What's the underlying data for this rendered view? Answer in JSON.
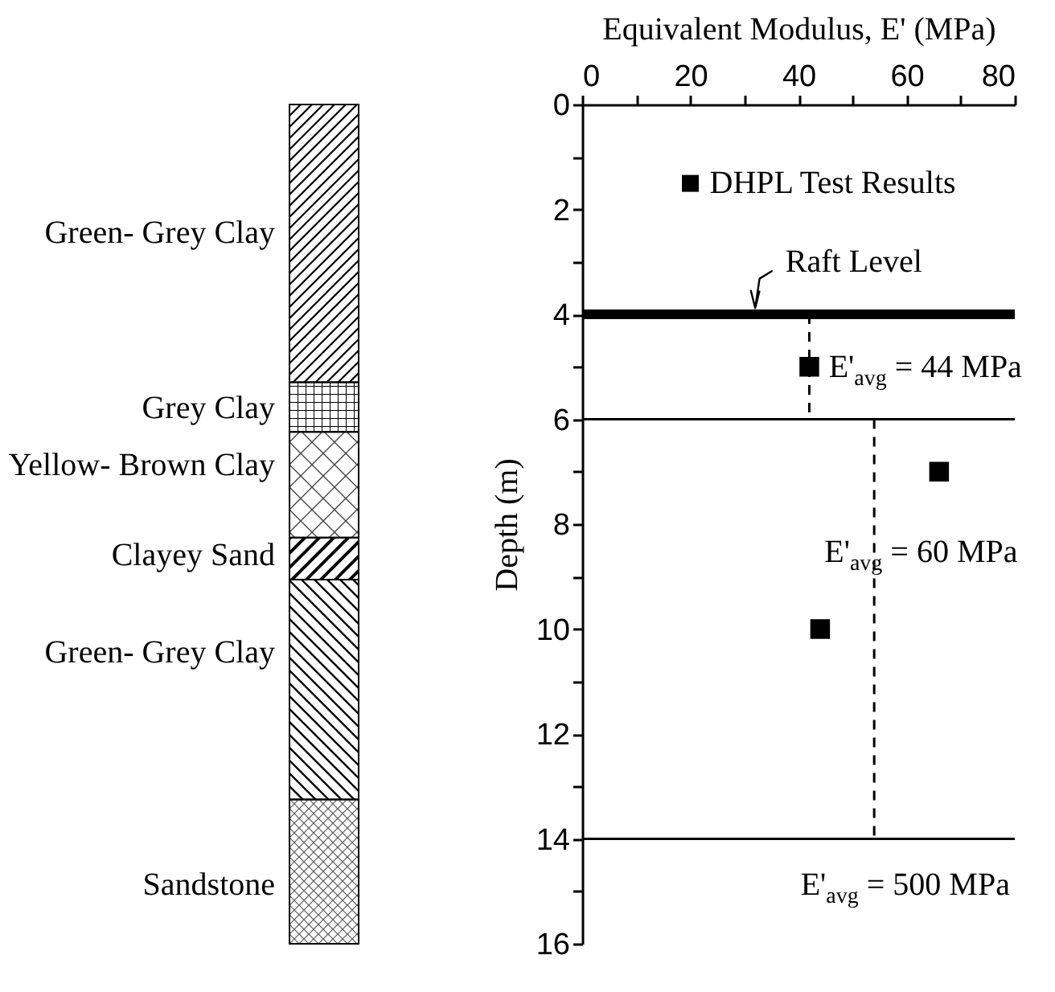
{
  "chart_data": {
    "type": "scatter",
    "xlabel": "Equivalent Modulus, E' (MPa)",
    "ylabel": "Depth (m)",
    "xlim": [
      0,
      80
    ],
    "xticks": [
      0,
      {
        "value": 10,
        "label": null
      },
      20,
      {
        "value": 30,
        "label": null
      },
      40,
      {
        "value": 50,
        "label": null
      },
      60,
      {
        "value": 70,
        "label": null
      },
      80
    ],
    "ylim": [
      16,
      0
    ],
    "yticks": [
      0,
      {
        "value": 1,
        "label": null
      },
      2,
      {
        "value": 3,
        "label": null
      },
      4,
      {
        "value": 5,
        "label": null
      },
      6,
      {
        "value": 7,
        "label": null
      },
      8,
      {
        "value": 9,
        "label": null
      },
      10,
      {
        "value": 11,
        "label": null
      },
      12,
      {
        "value": 13,
        "label": null
      },
      14,
      {
        "value": 15,
        "label": null
      },
      16
    ],
    "marker": "square",
    "legend": "top right",
    "series": [
      {
        "name": "DHPL Test Results",
        "color": "#000000",
        "x": [
          42,
          66,
          44
        ],
        "values": [
          5,
          7,
          10
        ]
      },
      {
        "type": "line",
        "color": "#000000",
        "line_style": "dashed",
        "marker": "none",
        "x": [
          42,
          42
        ],
        "values": [
          4,
          6
        ]
      },
      {
        "type": "line",
        "color": "#000000",
        "line_style": "dashed",
        "marker": "none",
        "x": [
          54,
          54
        ],
        "values": [
          6,
          14
        ]
      }
    ],
    "ref_lines": [
      {
        "axis": "y",
        "value": 4,
        "label": "Raft Level"
      },
      {
        "axis": "y",
        "value": 6
      },
      {
        "axis": "y",
        "value": 14
      }
    ],
    "annotations": [
      "Green- Grey Clay",
      "Grey Clay",
      "Yellow- Brown Clay",
      "Clayey Sand",
      "Green- Grey Clay",
      "Sandstone",
      "E'$_{avg}$ = 44 MPa",
      "E'$_{avg}$ = 60 MPa",
      "E'$_{avg}$ = 500 MPa"
    ]
  }
}
